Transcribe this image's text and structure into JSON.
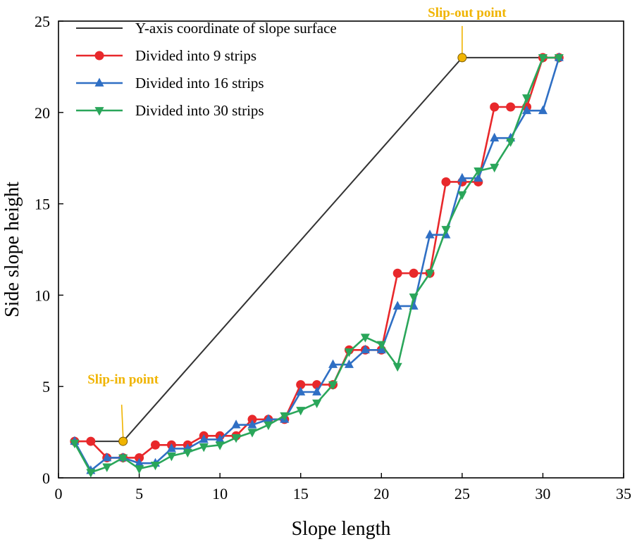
{
  "chart_data": {
    "type": "line",
    "xlabel": "Slope length",
    "ylabel": "Side slope height",
    "xlim": [
      0,
      35
    ],
    "ylim": [
      0,
      25
    ],
    "xticks": [
      0,
      5,
      10,
      15,
      20,
      25,
      30,
      35
    ],
    "yticks": [
      0,
      5,
      10,
      15,
      20,
      25
    ],
    "xtick_labels": [
      "0",
      "5",
      "10",
      "15",
      "20",
      "25",
      "30",
      "35"
    ],
    "ytick_labels": [
      "0",
      "5",
      "10",
      "15",
      "20",
      "25"
    ],
    "legend_position": "top-left",
    "series": [
      {
        "name": "Y-axis coordinate of slope surface",
        "color": "#333333",
        "marker": "none",
        "x": [
          1,
          4,
          25,
          31
        ],
        "y": [
          2,
          2,
          23,
          23
        ]
      },
      {
        "name": "Divided into 9 strips",
        "color": "#e8282b",
        "marker": "circle",
        "x": [
          1,
          2,
          3,
          4,
          5,
          6,
          7,
          8,
          9,
          10,
          11,
          12,
          13,
          14,
          15,
          16,
          17,
          18,
          19,
          20,
          21,
          22,
          23,
          24,
          25,
          26,
          27,
          28,
          29,
          30,
          31
        ],
        "y": [
          2.0,
          2.0,
          1.1,
          1.1,
          1.1,
          1.8,
          1.8,
          1.8,
          2.3,
          2.3,
          2.3,
          3.2,
          3.2,
          3.2,
          5.1,
          5.1,
          5.1,
          7.0,
          7.0,
          7.0,
          11.2,
          11.2,
          11.2,
          16.2,
          16.2,
          16.2,
          20.3,
          20.3,
          20.3,
          23.0,
          23.0
        ]
      },
      {
        "name": "Divided into 16 strips",
        "color": "#2f6fc4",
        "marker": "triangle-up",
        "x": [
          1,
          2,
          3,
          4,
          5,
          6,
          7,
          8,
          9,
          10,
          11,
          12,
          13,
          14,
          15,
          16,
          17,
          18,
          19,
          20,
          21,
          22,
          23,
          24,
          25,
          26,
          27,
          28,
          29,
          30,
          31
        ],
        "y": [
          2.0,
          0.4,
          1.1,
          1.1,
          0.8,
          0.8,
          1.6,
          1.6,
          2.1,
          2.1,
          2.9,
          2.9,
          3.2,
          3.2,
          4.7,
          4.7,
          6.2,
          6.2,
          7.0,
          7.0,
          9.4,
          9.4,
          13.3,
          13.3,
          16.4,
          16.4,
          18.6,
          18.6,
          20.1,
          20.1,
          23.0
        ]
      },
      {
        "name": "Divided into 30 strips",
        "color": "#2aa65a",
        "marker": "triangle-down",
        "x": [
          1,
          2,
          3,
          4,
          5,
          6,
          7,
          8,
          9,
          10,
          11,
          12,
          13,
          14,
          15,
          16,
          17,
          18,
          19,
          20,
          21,
          22,
          23,
          24,
          25,
          26,
          27,
          28,
          29,
          30,
          31
        ],
        "y": [
          1.9,
          0.3,
          0.6,
          1.1,
          0.5,
          0.7,
          1.2,
          1.4,
          1.7,
          1.8,
          2.2,
          2.5,
          2.9,
          3.4,
          3.7,
          4.1,
          5.1,
          6.9,
          7.7,
          7.3,
          6.1,
          9.9,
          11.2,
          13.6,
          15.5,
          16.8,
          17.0,
          18.4,
          20.8,
          23.0,
          23.0
        ]
      }
    ],
    "annotations": [
      {
        "text": "Slip-in point",
        "x": 4,
        "y": 2,
        "color": "#f0b400"
      },
      {
        "text": "Slip-out point",
        "x": 25,
        "y": 23,
        "color": "#f0b400"
      }
    ]
  }
}
